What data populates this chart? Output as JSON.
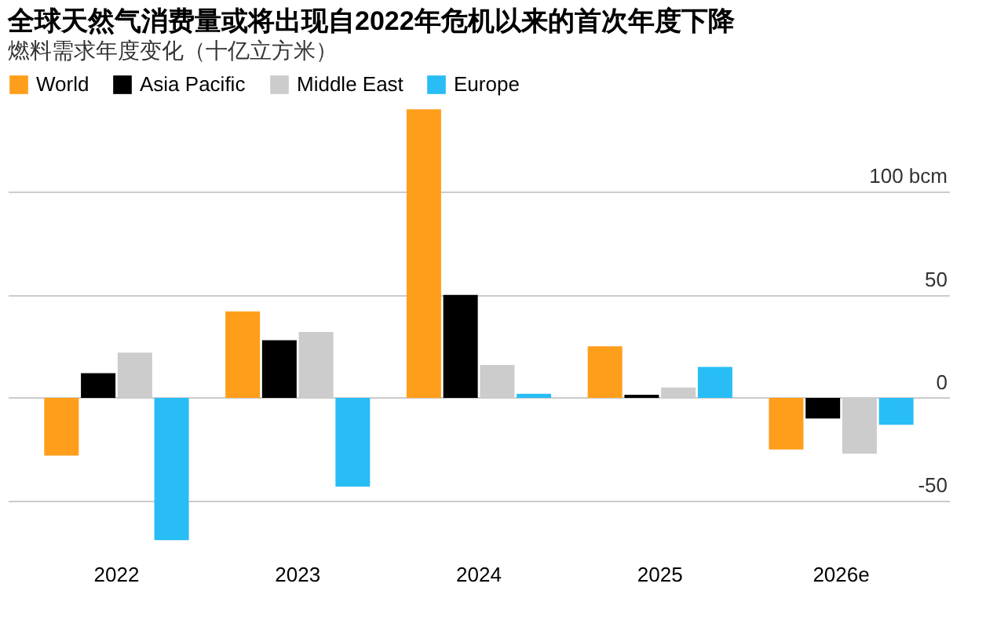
{
  "chart_data": {
    "type": "bar",
    "title": "全球天然气消费量或将出现自2022年危机以来的首次年度下降",
    "subtitle": "燃料需求年度变化（十亿立方米）",
    "categories": [
      "2022",
      "2023",
      "2024",
      "2025",
      "2026e"
    ],
    "series": [
      {
        "name": "World",
        "color": "#ff9e1b",
        "values": [
          -28,
          42,
          140,
          25,
          -25
        ]
      },
      {
        "name": "Asia Pacific",
        "color": "#000000",
        "values": [
          12,
          28,
          50,
          1.5,
          -10
        ]
      },
      {
        "name": "Middle East",
        "color": "#cccccc",
        "values": [
          22,
          32,
          16,
          5,
          -27
        ]
      },
      {
        "name": "Europe",
        "color": "#29bdf5",
        "values": [
          -69,
          -43,
          2,
          15,
          -13
        ]
      }
    ],
    "ylim": [
      -75,
      142
    ],
    "yticks": [
      {
        "value": -50,
        "label": "-50"
      },
      {
        "value": 0,
        "label": "0"
      },
      {
        "value": 50,
        "label": "50"
      },
      {
        "value": 100,
        "label": "100 bcm"
      }
    ],
    "grid": "y",
    "legend": "top left"
  }
}
